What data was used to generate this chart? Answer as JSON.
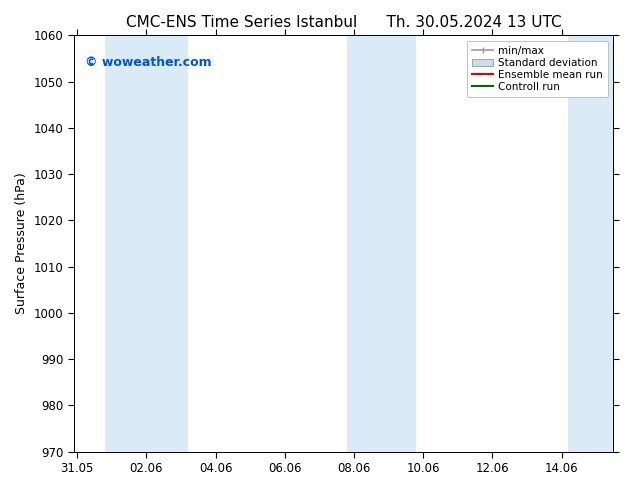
{
  "title_left": "CMC-ENS Time Series Istanbul",
  "title_right": "Th. 30.05.2024 13 UTC",
  "ylabel": "Surface Pressure (hPa)",
  "ylim": [
    970,
    1060
  ],
  "yticks": [
    970,
    980,
    990,
    1000,
    1010,
    1020,
    1030,
    1040,
    1050,
    1060
  ],
  "xtick_labels": [
    "31.05",
    "02.06",
    "04.06",
    "06.06",
    "08.06",
    "10.06",
    "12.06",
    "14.06"
  ],
  "xtick_positions": [
    0,
    2,
    4,
    6,
    8,
    10,
    12,
    14
  ],
  "xlim": [
    -0.1,
    15.5
  ],
  "shaded_bands": [
    {
      "x_start": 0.8,
      "x_end": 1.5,
      "color": "#daeaf7"
    },
    {
      "x_start": 1.5,
      "x_end": 3.2,
      "color": "#daeaf7"
    },
    {
      "x_start": 7.8,
      "x_end": 8.5,
      "color": "#daeaf7"
    },
    {
      "x_start": 8.5,
      "x_end": 9.8,
      "color": "#daeaf7"
    },
    {
      "x_start": 14.2,
      "x_end": 15.5,
      "color": "#daeaf7"
    }
  ],
  "watermark_text": "© woweather.com",
  "watermark_color": "#0055cc",
  "legend_items": [
    {
      "label": "min/max",
      "color": "#999999",
      "lw": 1.2,
      "style": "minmax"
    },
    {
      "label": "Standard deviation",
      "color": "#c8dded",
      "lw": 8,
      "style": "band"
    },
    {
      "label": "Ensemble mean run",
      "color": "#dd0000",
      "lw": 1.5,
      "style": "line"
    },
    {
      "label": "Controll run",
      "color": "#006600",
      "lw": 1.5,
      "style": "line"
    }
  ],
  "bg_color": "#ffffff",
  "title_fontsize": 11,
  "tick_fontsize": 8.5,
  "label_fontsize": 9
}
